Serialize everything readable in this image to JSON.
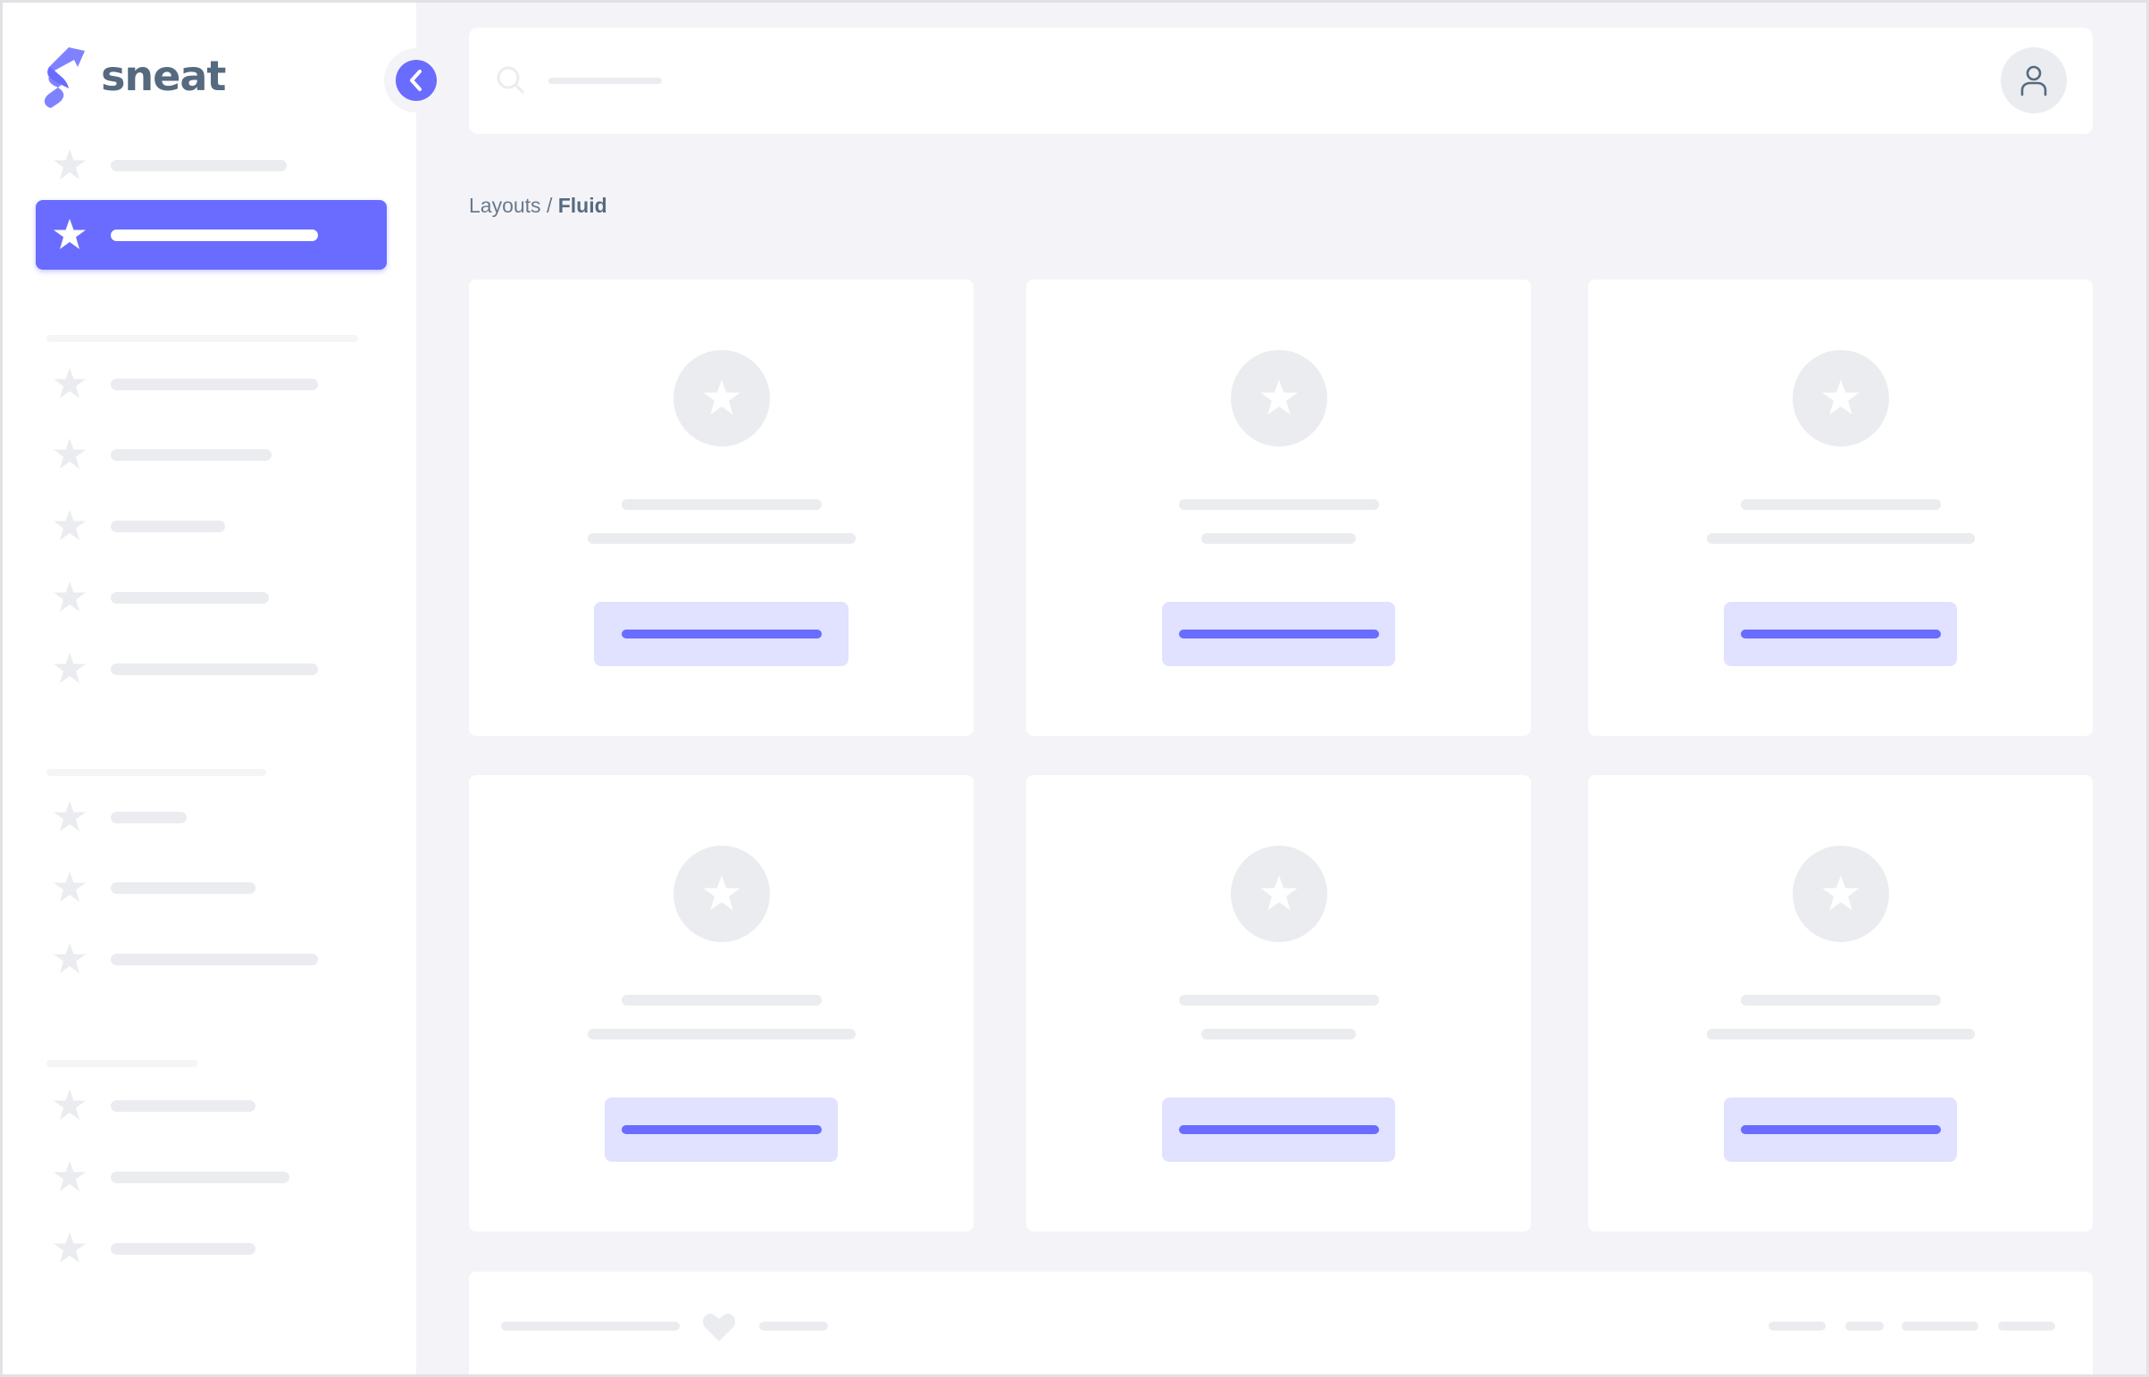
{
  "brand": {
    "name": "sneat",
    "logo_color": "#696cff",
    "text_color": "#566a7f"
  },
  "sidebar": {
    "collapse_icon": "chevron-left-icon",
    "item_icon": "star-icon",
    "active_index": 1
  },
  "navbar": {
    "search_icon": "search-icon",
    "avatar_icon": "user-icon"
  },
  "breadcrumb": {
    "parent": "Layouts",
    "separator": "/",
    "current": "Fluid"
  },
  "colors": {
    "primary": "#696cff",
    "primary_light": "#e1e2ff",
    "skeleton": "#ebecf0",
    "background": "#f4f4f8"
  },
  "footer": {
    "heart_icon": "heart-icon"
  }
}
